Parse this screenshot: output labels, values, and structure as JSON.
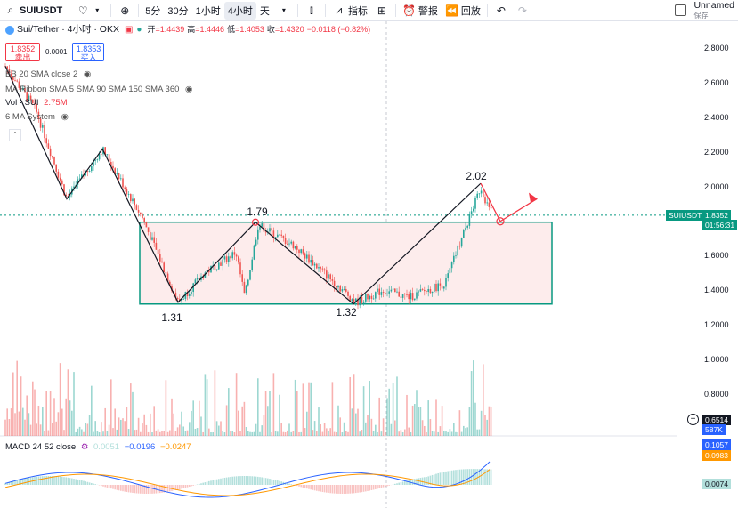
{
  "toolbar": {
    "symbol": "SUIUSDT",
    "intervals": [
      "5分",
      "30分",
      "1小时",
      "4小时",
      "天"
    ],
    "active_interval": "4小时",
    "indicators_label": "指标",
    "alert_label": "警报",
    "replay_label": "回放",
    "layout_name": "Unnamed",
    "save_label": "保存"
  },
  "legend": {
    "title": "Sui/Tether · 4小时 · OKX",
    "open_label": "开",
    "open": "=1.4439",
    "high_label": "高",
    "high": "=1.4446",
    "low_label": "低",
    "low": "=1.4053",
    "close_label": "收",
    "close": "=1.4320",
    "change": "−0.0118 (−0.82%)",
    "bid_price": "1.8352",
    "bid_label": "卖出",
    "spread": "0.0001",
    "ask_price": "1.8353",
    "ask_label": "买入"
  },
  "indicators": {
    "bb": "BB 20 SMA close 2",
    "ribbon": "MA Ribbon SMA 5 SMA 90 SMA 150 SMA 360",
    "vol_label": "Vol · SUI",
    "vol_value": "2.75M",
    "ma": "6 MA System",
    "macd_label": "MACD 24 52 close",
    "macd_v1": "0.0051",
    "macd_v2": "−0.0196",
    "macd_v3": "−0.0247"
  },
  "annotations": {
    "high_left": "1.79",
    "peak": "2.02",
    "low1": "1.31",
    "low2": "1.32"
  },
  "price_axis": {
    "labels": [
      "2.8000",
      "2.6000",
      "2.4000",
      "2.2000",
      "2.0000",
      "1.6000",
      "1.4000",
      "1.2000",
      "1.0000",
      "0.8000"
    ],
    "current_symbol": "SUIUSDT",
    "current_price": "1.8352",
    "countdown": "01:56:31",
    "volume_price": "0.6514",
    "volume_value": "587K",
    "macd_a": "0.1057",
    "macd_b": "0.0983",
    "macd_c": "0.0074"
  },
  "colors": {
    "up": "#26a69a",
    "down": "#ef5350",
    "box_stroke": "#089981",
    "box_fill": "#fdecec",
    "arrow": "#f23645",
    "macd_line": "#2962ff",
    "signal_line": "#ff9800"
  }
}
